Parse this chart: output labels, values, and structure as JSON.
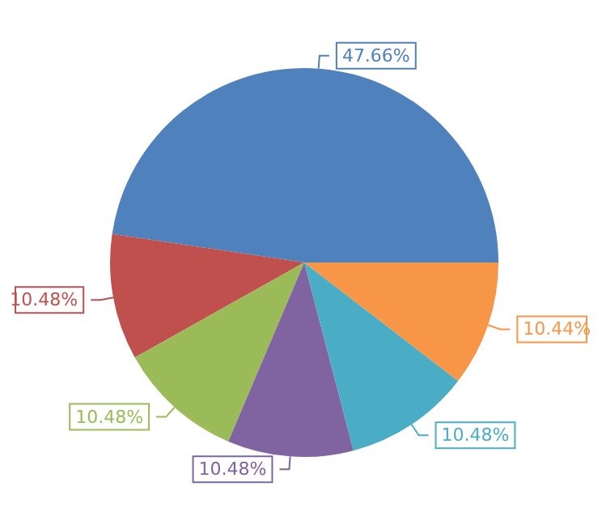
{
  "chart_data": {
    "type": "pie",
    "categories": [
      null,
      null,
      null,
      null,
      null,
      null
    ],
    "values": [
      47.66,
      10.48,
      10.48,
      10.48,
      10.48,
      10.44
    ],
    "value_labels": [
      "47.66%",
      "10.48%",
      "10.48%",
      "10.48%",
      "10.48%",
      "10.44%"
    ],
    "colors": [
      "#4f81bd",
      "#c0504d",
      "#9bbb59",
      "#8064a2",
      "#4bacc6",
      "#f79646"
    ]
  }
}
